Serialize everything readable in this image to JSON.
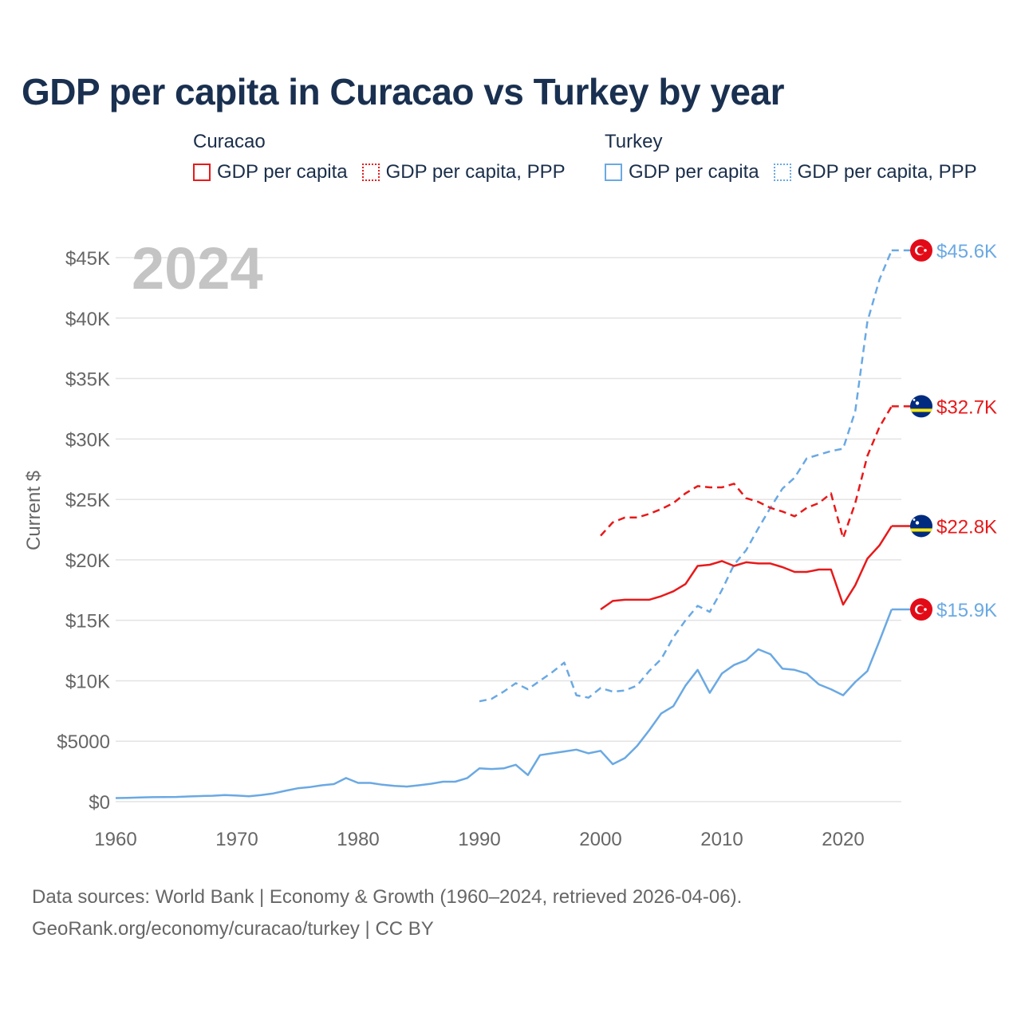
{
  "chart_data": {
    "type": "line",
    "title": "GDP per capita in Curacao vs Turkey by year",
    "year_label": "2024",
    "ylabel": "Current $",
    "xlabel": "",
    "xlim": [
      1960,
      2024
    ],
    "ylim": [
      0,
      47000
    ],
    "x_ticks": [
      1960,
      1970,
      1980,
      1990,
      2000,
      2010,
      2020
    ],
    "x_tick_labels": [
      "1960",
      "1970",
      "1980",
      "1990",
      "2000",
      "2010",
      "2020"
    ],
    "y_ticks": [
      0,
      5000,
      10000,
      15000,
      20000,
      25000,
      30000,
      35000,
      40000,
      45000
    ],
    "y_tick_labels": [
      "$0",
      "$5000",
      "$10K",
      "$15K",
      "$20K",
      "$25K",
      "$30K",
      "$35K",
      "$40K",
      "$45K"
    ],
    "legend": [
      {
        "group": "Curacao",
        "items": [
          {
            "label": "GDP per capita",
            "color": "#e8191a",
            "style": "solid"
          },
          {
            "label": "GDP per capita, PPP",
            "color": "#e8191a",
            "style": "dotted"
          }
        ]
      },
      {
        "group": "Turkey",
        "items": [
          {
            "label": "GDP per capita",
            "color": "#6aa9e3",
            "style": "solid"
          },
          {
            "label": "GDP per capita, PPP",
            "color": "#6aa9e3",
            "style": "dotted"
          }
        ]
      }
    ],
    "series": [
      {
        "name": "Turkey GDP per capita, PPP",
        "country": "Turkey",
        "flag": "turkey-flag-icon",
        "color": "#6aa9e3",
        "dashed": true,
        "end_label": "$45.6K",
        "x": [
          1990,
          1991,
          1992,
          1993,
          1994,
          1995,
          1996,
          1997,
          1998,
          1999,
          2000,
          2001,
          2002,
          2003,
          2004,
          2005,
          2006,
          2007,
          2008,
          2009,
          2010,
          2011,
          2012,
          2013,
          2014,
          2015,
          2016,
          2017,
          2018,
          2019,
          2020,
          2021,
          2022,
          2023,
          2024
        ],
        "values": [
          8300,
          8500,
          9100,
          9800,
          9300,
          10000,
          10700,
          11500,
          8800,
          8600,
          9400,
          9100,
          9200,
          9600,
          10800,
          11800,
          13600,
          15000,
          16200,
          15700,
          17500,
          19600,
          20800,
          22600,
          24300,
          25900,
          26800,
          28400,
          28700,
          29000,
          29200,
          32300,
          39700,
          43200,
          45600
        ]
      },
      {
        "name": "Curacao GDP per capita, PPP",
        "country": "Curacao",
        "flag": "curacao-flag-icon",
        "color": "#e8191a",
        "dashed": true,
        "end_label": "$32.7K",
        "x": [
          2000,
          2001,
          2002,
          2003,
          2004,
          2005,
          2006,
          2007,
          2008,
          2009,
          2010,
          2011,
          2012,
          2013,
          2014,
          2015,
          2016,
          2017,
          2018,
          2019,
          2020,
          2021,
          2022,
          2023,
          2024
        ],
        "values": [
          22000,
          23100,
          23500,
          23500,
          23800,
          24200,
          24700,
          25500,
          26100,
          26000,
          26000,
          26300,
          25100,
          24800,
          24300,
          24000,
          23600,
          24300,
          24700,
          25500,
          21800,
          24700,
          28600,
          31000,
          32700
        ]
      },
      {
        "name": "Curacao GDP per capita",
        "country": "Curacao",
        "flag": "curacao-flag-icon",
        "color": "#e8191a",
        "dashed": false,
        "end_label": "$22.8K",
        "x": [
          2000,
          2001,
          2002,
          2003,
          2004,
          2005,
          2006,
          2007,
          2008,
          2009,
          2010,
          2011,
          2012,
          2013,
          2014,
          2015,
          2016,
          2017,
          2018,
          2019,
          2020,
          2021,
          2022,
          2023,
          2024
        ],
        "values": [
          15900,
          16600,
          16700,
          16700,
          16700,
          17000,
          17400,
          18000,
          19500,
          19600,
          19900,
          19500,
          19800,
          19700,
          19700,
          19400,
          19000,
          19000,
          19200,
          19200,
          16300,
          17900,
          20100,
          21200,
          22800
        ]
      },
      {
        "name": "Turkey GDP per capita",
        "country": "Turkey",
        "flag": "turkey-flag-icon",
        "color": "#6aa9e3",
        "dashed": false,
        "end_label": "$15.9K",
        "x": [
          1960,
          1961,
          1962,
          1963,
          1964,
          1965,
          1966,
          1967,
          1968,
          1969,
          1970,
          1971,
          1972,
          1973,
          1974,
          1975,
          1976,
          1977,
          1978,
          1979,
          1980,
          1981,
          1982,
          1983,
          1984,
          1985,
          1986,
          1987,
          1988,
          1989,
          1990,
          1991,
          1992,
          1993,
          1994,
          1995,
          1996,
          1997,
          1998,
          1999,
          2000,
          2001,
          2002,
          2003,
          2004,
          2005,
          2006,
          2007,
          2008,
          2009,
          2010,
          2011,
          2012,
          2013,
          2014,
          2015,
          2016,
          2017,
          2018,
          2019,
          2020,
          2021,
          2022,
          2023,
          2024
        ],
        "values": [
          300,
          320,
          340,
          370,
          380,
          390,
          430,
          460,
          490,
          540,
          500,
          450,
          550,
          680,
          900,
          1100,
          1200,
          1350,
          1450,
          1950,
          1550,
          1550,
          1400,
          1300,
          1250,
          1350,
          1480,
          1650,
          1650,
          1950,
          2750,
          2700,
          2750,
          3050,
          2200,
          3850,
          4000,
          4150,
          4300,
          4000,
          4200,
          3100,
          3600,
          4600,
          5900,
          7300,
          7900,
          9600,
          10900,
          9000,
          10600,
          11300,
          11700,
          12600,
          12200,
          11000,
          10900,
          10600,
          9700,
          9300,
          8800,
          9900,
          10800,
          13300,
          15900
        ]
      }
    ]
  },
  "footer": {
    "line1": "Data sources: World Bank | Economy & Growth (1960–2024, retrieved 2026-04-06).",
    "line2": "GeoRank.org/economy/curacao/turkey | CC BY"
  },
  "colors": {
    "curacao": "#e8191a",
    "turkey": "#6aa9e3",
    "grid": "#e3e3e3",
    "axis_text": "#666666",
    "title": "#1a3050"
  }
}
